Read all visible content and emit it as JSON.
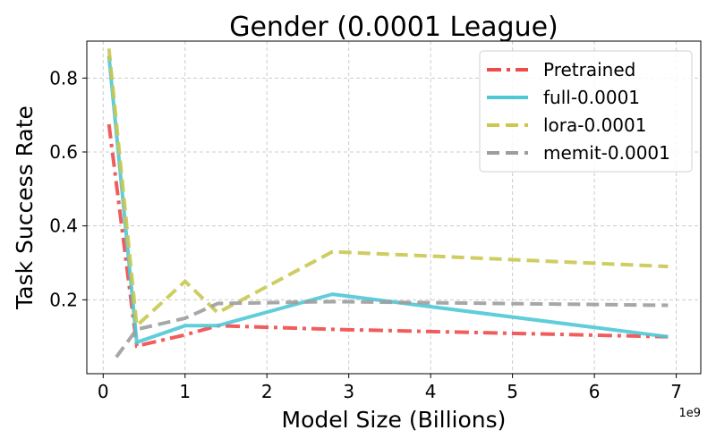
{
  "chart_data": {
    "type": "line",
    "title": "Gender (0.0001 League)",
    "xlabel": "Model Size (Billions)",
    "ylabel": "Task Success Rate",
    "x_scale_note": "1e9",
    "xlim": [
      -200000000.0,
      7300000000.0
    ],
    "ylim": [
      0.0,
      0.9
    ],
    "xticks": [
      0,
      1000000000,
      2000000000,
      3000000000,
      4000000000,
      5000000000,
      6000000000,
      7000000000
    ],
    "xtick_labels": [
      "0",
      "1",
      "2",
      "3",
      "4",
      "5",
      "6",
      "7"
    ],
    "yticks": [
      0.2,
      0.4,
      0.6,
      0.8
    ],
    "ytick_labels": [
      "0.2",
      "0.4",
      "0.6",
      "0.8"
    ],
    "grid": true,
    "legend_position": "top-right",
    "series": [
      {
        "name": "Pretrained",
        "color": "#f04a4a",
        "dash": "dashdot",
        "x": [
          70000000,
          410000000,
          1000000000,
          1400000000,
          2800000000,
          6900000000
        ],
        "y": [
          0.675,
          0.075,
          0.105,
          0.13,
          0.12,
          0.1
        ]
      },
      {
        "name": "full-0.0001",
        "color": "#4fc8d6",
        "dash": "solid",
        "x": [
          70000000,
          410000000,
          1000000000,
          1400000000,
          2800000000,
          6900000000
        ],
        "y": [
          0.86,
          0.085,
          0.13,
          0.13,
          0.215,
          0.1
        ]
      },
      {
        "name": "lora-0.0001",
        "color": "#c9c850",
        "dash": "dashed",
        "x": [
          70000000,
          410000000,
          1000000000,
          1400000000,
          2800000000,
          6900000000
        ],
        "y": [
          0.88,
          0.13,
          0.25,
          0.165,
          0.33,
          0.29
        ]
      },
      {
        "name": "memit-0.0001",
        "color": "#9d9d9d",
        "dash": "dashed",
        "x": [
          160000000,
          410000000,
          1000000000,
          1400000000,
          2800000000,
          6900000000
        ],
        "y": [
          0.045,
          0.12,
          0.15,
          0.19,
          0.195,
          0.185
        ]
      }
    ]
  }
}
